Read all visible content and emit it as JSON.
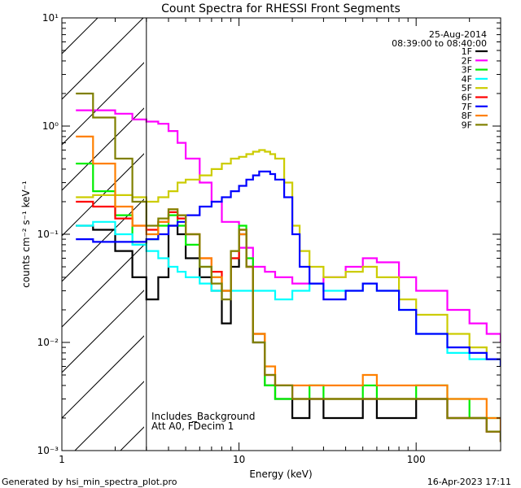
{
  "chart_data": {
    "type": "line",
    "title": "Count Spectra for RHESSI Front Segments",
    "xlabel": "Energy (keV)",
    "ylabel": "counts cm⁻² s⁻¹ keV⁻¹",
    "xscale": "log",
    "yscale": "log",
    "xlim": [
      1,
      300
    ],
    "ylim": [
      0.001,
      10
    ],
    "x_ticks": [
      {
        "value": 1,
        "label": "1"
      },
      {
        "value": 10,
        "label": "10"
      },
      {
        "value": 100,
        "label": "100"
      }
    ],
    "y_ticks": [
      {
        "value": 10,
        "label": "10¹"
      },
      {
        "value": 1,
        "label": "10⁰"
      },
      {
        "value": 0.1,
        "label": "10⁻¹"
      },
      {
        "value": 0.01,
        "label": "10⁻²"
      },
      {
        "value": 0.001,
        "label": "10⁻³"
      }
    ],
    "date": "25-Aug-2014",
    "time_range": "08:39:00 to 08:40:00",
    "excluded_region": {
      "x_min": 1,
      "x_max": 3,
      "note": "hatched region below 3 keV"
    },
    "annotations": [
      "Includes_Background",
      "Att A0, FDecim 1"
    ],
    "series": [
      {
        "name": "1F",
        "color": "#000000",
        "x": [
          1.2,
          1.5,
          2.0,
          2.5,
          3.0,
          3.5,
          4.0,
          4.5,
          5.0,
          6.0,
          7.0,
          8.0,
          9.0,
          10.0,
          11.0,
          12.0,
          14.0,
          16.0,
          20.0,
          25.0,
          30.0,
          40.0,
          50.0,
          60.0,
          80.0,
          100.0,
          150.0,
          200.0,
          250.0,
          300.0
        ],
        "values": [
          0.12,
          0.11,
          0.07,
          0.04,
          0.025,
          0.04,
          0.12,
          0.1,
          0.06,
          0.04,
          0.03,
          0.015,
          0.05,
          0.1,
          0.05,
          0.01,
          0.004,
          0.003,
          0.002,
          0.003,
          0.002,
          0.002,
          0.003,
          0.002,
          0.002,
          0.003,
          0.002,
          0.002,
          0.0015,
          0.0012
        ]
      },
      {
        "name": "2F",
        "color": "#ff00ff",
        "x": [
          1.2,
          1.5,
          2.0,
          2.5,
          3.0,
          3.5,
          4.0,
          4.5,
          5.0,
          6.0,
          7.0,
          8.0,
          10.0,
          12.0,
          14.0,
          16.0,
          20.0,
          25.0,
          30.0,
          40.0,
          50.0,
          60.0,
          80.0,
          100.0,
          150.0,
          200.0,
          250.0,
          300.0
        ],
        "values": [
          1.4,
          1.4,
          1.3,
          1.15,
          1.1,
          1.05,
          0.9,
          0.7,
          0.5,
          0.3,
          0.2,
          0.13,
          0.075,
          0.05,
          0.045,
          0.04,
          0.035,
          0.035,
          0.04,
          0.05,
          0.06,
          0.055,
          0.04,
          0.03,
          0.02,
          0.015,
          0.012,
          0.01
        ]
      },
      {
        "name": "3F",
        "color": "#00ee00",
        "x": [
          1.2,
          1.5,
          2.0,
          2.5,
          3.0,
          3.5,
          4.0,
          4.5,
          5.0,
          6.0,
          7.0,
          8.0,
          9.0,
          10.0,
          11.0,
          12.0,
          14.0,
          16.0,
          20.0,
          25.0,
          30.0,
          40.0,
          50.0,
          60.0,
          80.0,
          100.0,
          150.0,
          200.0,
          250.0,
          300.0
        ],
        "values": [
          0.45,
          0.25,
          0.15,
          0.08,
          0.09,
          0.12,
          0.15,
          0.12,
          0.08,
          0.05,
          0.04,
          0.03,
          0.06,
          0.12,
          0.06,
          0.012,
          0.004,
          0.003,
          0.003,
          0.004,
          0.003,
          0.003,
          0.004,
          0.003,
          0.003,
          0.004,
          0.003,
          0.002,
          0.002,
          0.0015
        ]
      },
      {
        "name": "4F",
        "color": "#00ffff",
        "x": [
          1.2,
          1.5,
          2.0,
          2.5,
          3.0,
          3.5,
          4.0,
          4.5,
          5.0,
          6.0,
          7.0,
          8.0,
          10.0,
          12.0,
          14.0,
          16.0,
          20.0,
          25.0,
          30.0,
          40.0,
          50.0,
          60.0,
          80.0,
          100.0,
          150.0,
          200.0,
          250.0,
          300.0
        ],
        "values": [
          0.12,
          0.13,
          0.1,
          0.08,
          0.07,
          0.06,
          0.05,
          0.045,
          0.04,
          0.035,
          0.03,
          0.03,
          0.03,
          0.03,
          0.03,
          0.025,
          0.03,
          0.035,
          0.03,
          0.03,
          0.035,
          0.03,
          0.02,
          0.012,
          0.008,
          0.007,
          0.007,
          0.006
        ]
      },
      {
        "name": "5F",
        "color": "#cccc00",
        "x": [
          1.2,
          1.5,
          2.0,
          2.5,
          3.0,
          3.5,
          4.0,
          4.5,
          5.0,
          6.0,
          7.0,
          8.0,
          9.0,
          10.0,
          11.0,
          12.0,
          13.0,
          14.0,
          15.0,
          16.0,
          18.0,
          20.0,
          22.0,
          25.0,
          30.0,
          40.0,
          50.0,
          60.0,
          80.0,
          100.0,
          150.0,
          200.0,
          250.0,
          300.0
        ],
        "values": [
          0.22,
          0.23,
          0.23,
          0.22,
          0.2,
          0.22,
          0.25,
          0.3,
          0.32,
          0.35,
          0.4,
          0.45,
          0.5,
          0.52,
          0.55,
          0.58,
          0.6,
          0.58,
          0.55,
          0.5,
          0.3,
          0.12,
          0.07,
          0.05,
          0.04,
          0.045,
          0.05,
          0.04,
          0.025,
          0.018,
          0.012,
          0.009,
          0.007,
          0.006
        ]
      },
      {
        "name": "6F",
        "color": "#ff0000",
        "x": [
          1.2,
          1.5,
          2.0,
          2.5,
          3.0,
          3.5,
          4.0,
          4.5,
          5.0,
          6.0,
          7.0,
          8.0,
          9.0,
          10.0,
          11.0,
          12.0,
          14.0,
          16.0,
          20.0,
          25.0,
          30.0,
          40.0,
          50.0,
          60.0,
          80.0,
          100.0,
          150.0,
          200.0,
          250.0,
          300.0
        ],
        "values": [
          0.2,
          0.18,
          0.14,
          0.12,
          0.11,
          0.13,
          0.16,
          0.14,
          0.1,
          0.06,
          0.045,
          0.03,
          0.06,
          0.11,
          0.05,
          0.012,
          0.005,
          0.004,
          0.003,
          0.003,
          0.003,
          0.003,
          0.003,
          0.003,
          0.003,
          0.003,
          0.002,
          0.002,
          0.0015,
          0.0012
        ]
      },
      {
        "name": "7F",
        "color": "#0000ff",
        "x": [
          1.2,
          1.5,
          2.0,
          2.5,
          3.0,
          3.5,
          4.0,
          4.5,
          5.0,
          6.0,
          7.0,
          8.0,
          9.0,
          10.0,
          11.0,
          12.0,
          13.0,
          14.0,
          15.0,
          16.0,
          18.0,
          20.0,
          22.0,
          25.0,
          30.0,
          40.0,
          50.0,
          60.0,
          80.0,
          100.0,
          150.0,
          200.0,
          250.0,
          300.0
        ],
        "values": [
          0.09,
          0.085,
          0.085,
          0.085,
          0.09,
          0.1,
          0.12,
          0.13,
          0.15,
          0.18,
          0.2,
          0.22,
          0.25,
          0.28,
          0.32,
          0.35,
          0.38,
          0.38,
          0.36,
          0.32,
          0.22,
          0.1,
          0.05,
          0.035,
          0.025,
          0.03,
          0.035,
          0.03,
          0.02,
          0.012,
          0.009,
          0.008,
          0.007,
          0.006
        ]
      },
      {
        "name": "8F",
        "color": "#ff8000",
        "x": [
          1.2,
          1.5,
          2.0,
          2.5,
          3.0,
          3.5,
          4.0,
          4.5,
          5.0,
          6.0,
          7.0,
          8.0,
          9.0,
          10.0,
          11.0,
          12.0,
          14.0,
          16.0,
          20.0,
          25.0,
          30.0,
          40.0,
          50.0,
          60.0,
          80.0,
          100.0,
          150.0,
          200.0,
          250.0,
          300.0
        ],
        "values": [
          0.8,
          0.45,
          0.18,
          0.12,
          0.1,
          0.13,
          0.17,
          0.15,
          0.1,
          0.06,
          0.04,
          0.03,
          0.07,
          0.1,
          0.05,
          0.012,
          0.006,
          0.004,
          0.004,
          0.004,
          0.004,
          0.004,
          0.005,
          0.004,
          0.004,
          0.004,
          0.003,
          0.003,
          0.002,
          0.0015
        ]
      },
      {
        "name": "9F",
        "color": "#808000",
        "x": [
          1.2,
          1.5,
          2.0,
          2.5,
          3.0,
          3.5,
          4.0,
          4.5,
          5.0,
          6.0,
          7.0,
          8.0,
          9.0,
          10.0,
          11.0,
          12.0,
          14.0,
          16.0,
          20.0,
          25.0,
          30.0,
          40.0,
          50.0,
          60.0,
          80.0,
          100.0,
          150.0,
          200.0,
          250.0,
          300.0
        ],
        "values": [
          2.0,
          1.2,
          0.5,
          0.2,
          0.12,
          0.14,
          0.17,
          0.15,
          0.1,
          0.05,
          0.035,
          0.025,
          0.07,
          0.11,
          0.05,
          0.01,
          0.005,
          0.004,
          0.003,
          0.003,
          0.003,
          0.003,
          0.003,
          0.003,
          0.003,
          0.003,
          0.002,
          0.002,
          0.0015,
          0.0012
        ]
      }
    ]
  },
  "footer": {
    "generated_by": "Generated by hsi_min_spectra_plot.pro",
    "date_stamp": "16-Apr-2023 17:11"
  }
}
